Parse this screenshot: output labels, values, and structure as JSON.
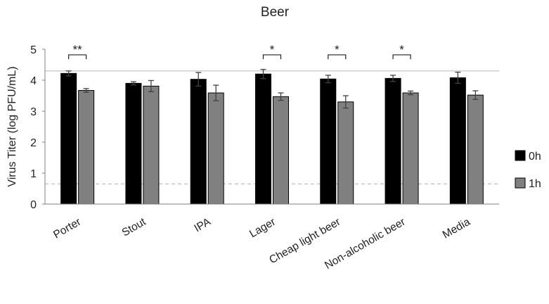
{
  "chart_data": {
    "type": "bar",
    "title": "Beer",
    "xlabel": "",
    "ylabel": "Virus Titer (log PFU/mL)",
    "ylim": [
      0,
      5
    ],
    "yticks": [
      0,
      1,
      2,
      3,
      4,
      5
    ],
    "categories": [
      "Porter",
      "Stout",
      "IPA",
      "Lager",
      "Cheap light beer",
      "Non-alcoholic beer",
      "Media"
    ],
    "series": [
      {
        "name": "0h",
        "color": "#000000",
        "values": [
          4.22,
          3.9,
          4.03,
          4.2,
          4.04,
          4.06,
          4.08
        ],
        "errors": [
          0.08,
          0.05,
          0.22,
          0.15,
          0.12,
          0.1,
          0.18
        ]
      },
      {
        "name": "1h",
        "color": "#808080",
        "values": [
          3.67,
          3.81,
          3.59,
          3.47,
          3.3,
          3.59,
          3.52
        ],
        "errors": [
          0.06,
          0.18,
          0.25,
          0.12,
          0.2,
          0.06,
          0.14
        ]
      }
    ],
    "significance": [
      "**",
      "",
      "",
      "*",
      "*",
      "*",
      ""
    ],
    "reference_lines": [
      {
        "value": 4.3,
        "style": "solid",
        "color": "#bfbfbf"
      },
      {
        "value": 0.65,
        "style": "dashed",
        "color": "#bfbfbf"
      }
    ],
    "grid": false,
    "legend_position": "right"
  }
}
